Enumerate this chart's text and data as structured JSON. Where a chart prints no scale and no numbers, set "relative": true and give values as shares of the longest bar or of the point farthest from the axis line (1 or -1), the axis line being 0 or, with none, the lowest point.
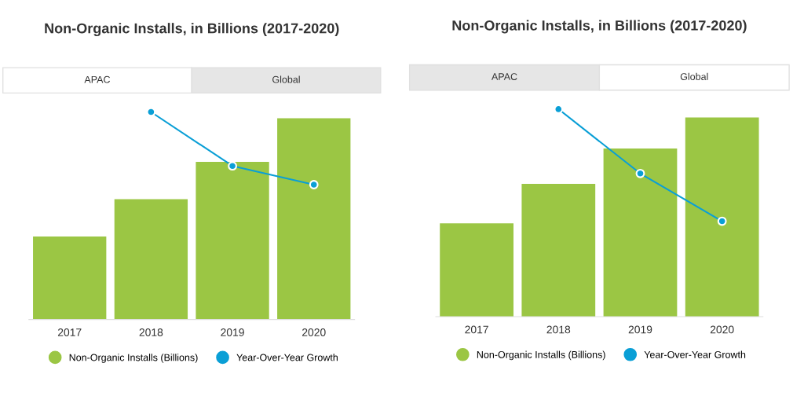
{
  "chart_data": [
    {
      "type": "bar",
      "title": "Non-Organic Installs, in Billions (2017-2020)",
      "annotations": [
        "APAC",
        "Global"
      ],
      "categories": [
        "2017",
        "2018",
        "2019",
        "2020"
      ],
      "relative": true,
      "legend": "bottom",
      "grid": false,
      "marker": "circle",
      "series": [
        {
          "name": "Non-Organic Installs (Billions)",
          "color": "#9bc644",
          "values": [
            0.4,
            0.58,
            0.76,
            0.97
          ]
        },
        {
          "name": "Year-Over-Year Growth",
          "type": "line",
          "color": "#0a9fd6",
          "values": [
            null,
            1,
            0.74,
            0.65
          ]
        }
      ]
    },
    {
      "type": "bar",
      "title": "Non-Organic Installs, in Billions (2017-2020)",
      "annotations": [
        "APAC",
        "Global"
      ],
      "categories": [
        "2017",
        "2018",
        "2019",
        "2020"
      ],
      "relative": true,
      "legend": "bottom",
      "grid": false,
      "marker": "circle",
      "series": [
        {
          "name": "Non-Organic Installs (Billions)",
          "color": "#9bc644",
          "values": [
            0.45,
            0.64,
            0.81,
            0.96
          ]
        },
        {
          "name": "Year-Over-Year Growth",
          "type": "line",
          "color": "#0a9fd6",
          "values": [
            null,
            1,
            0.69,
            0.46
          ]
        }
      ]
    }
  ]
}
